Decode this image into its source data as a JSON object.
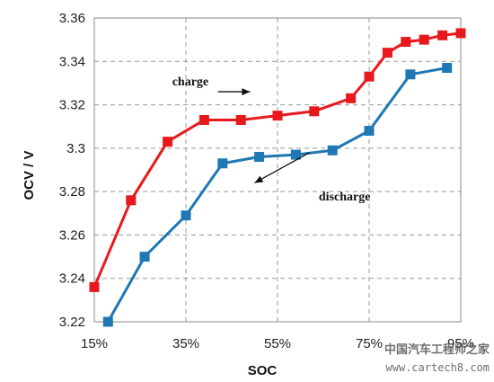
{
  "chart_data": {
    "type": "line",
    "title": "",
    "xlabel": "SOC",
    "ylabel": "OCV / V",
    "x_ticks": [
      "15%",
      "35%",
      "55%",
      "75%",
      "95%"
    ],
    "y_ticks": [
      "3.22",
      "3.24",
      "3.26",
      "3.28",
      "3.3",
      "3.32",
      "3.34",
      "3.36"
    ],
    "xlim": [
      15,
      95
    ],
    "ylim": [
      3.22,
      3.36
    ],
    "grid": true,
    "legend": "none",
    "series": [
      {
        "name": "charge",
        "color": "#e8191c",
        "marker": "square",
        "x": [
          15,
          23,
          31,
          39,
          47,
          55,
          63,
          71,
          75,
          79,
          83,
          87,
          91,
          95
        ],
        "y": [
          3.236,
          3.276,
          3.303,
          3.313,
          3.313,
          3.315,
          3.317,
          3.323,
          3.333,
          3.344,
          3.349,
          3.35,
          3.352,
          3.353
        ]
      },
      {
        "name": "discharge",
        "color": "#1f78b4",
        "marker": "square",
        "x": [
          18,
          26,
          35,
          43,
          51,
          59,
          67,
          75,
          84,
          92
        ],
        "y": [
          3.22,
          3.25,
          3.269,
          3.293,
          3.296,
          3.297,
          3.299,
          3.308,
          3.334,
          3.337
        ]
      }
    ],
    "annotations": [
      {
        "text": "charge",
        "x": 32,
        "y": 3.329,
        "arrow": {
          "from": [
            42,
            3.326
          ],
          "to": [
            49,
            3.326
          ]
        }
      },
      {
        "text": "discharge",
        "x": 64,
        "y": 3.276,
        "arrow": {
          "from": [
            62,
            3.298
          ],
          "to": [
            50,
            3.284
          ]
        }
      }
    ]
  },
  "watermark": {
    "line1": "中国汽车工程师之家",
    "line2": "www.cartech8.com"
  }
}
